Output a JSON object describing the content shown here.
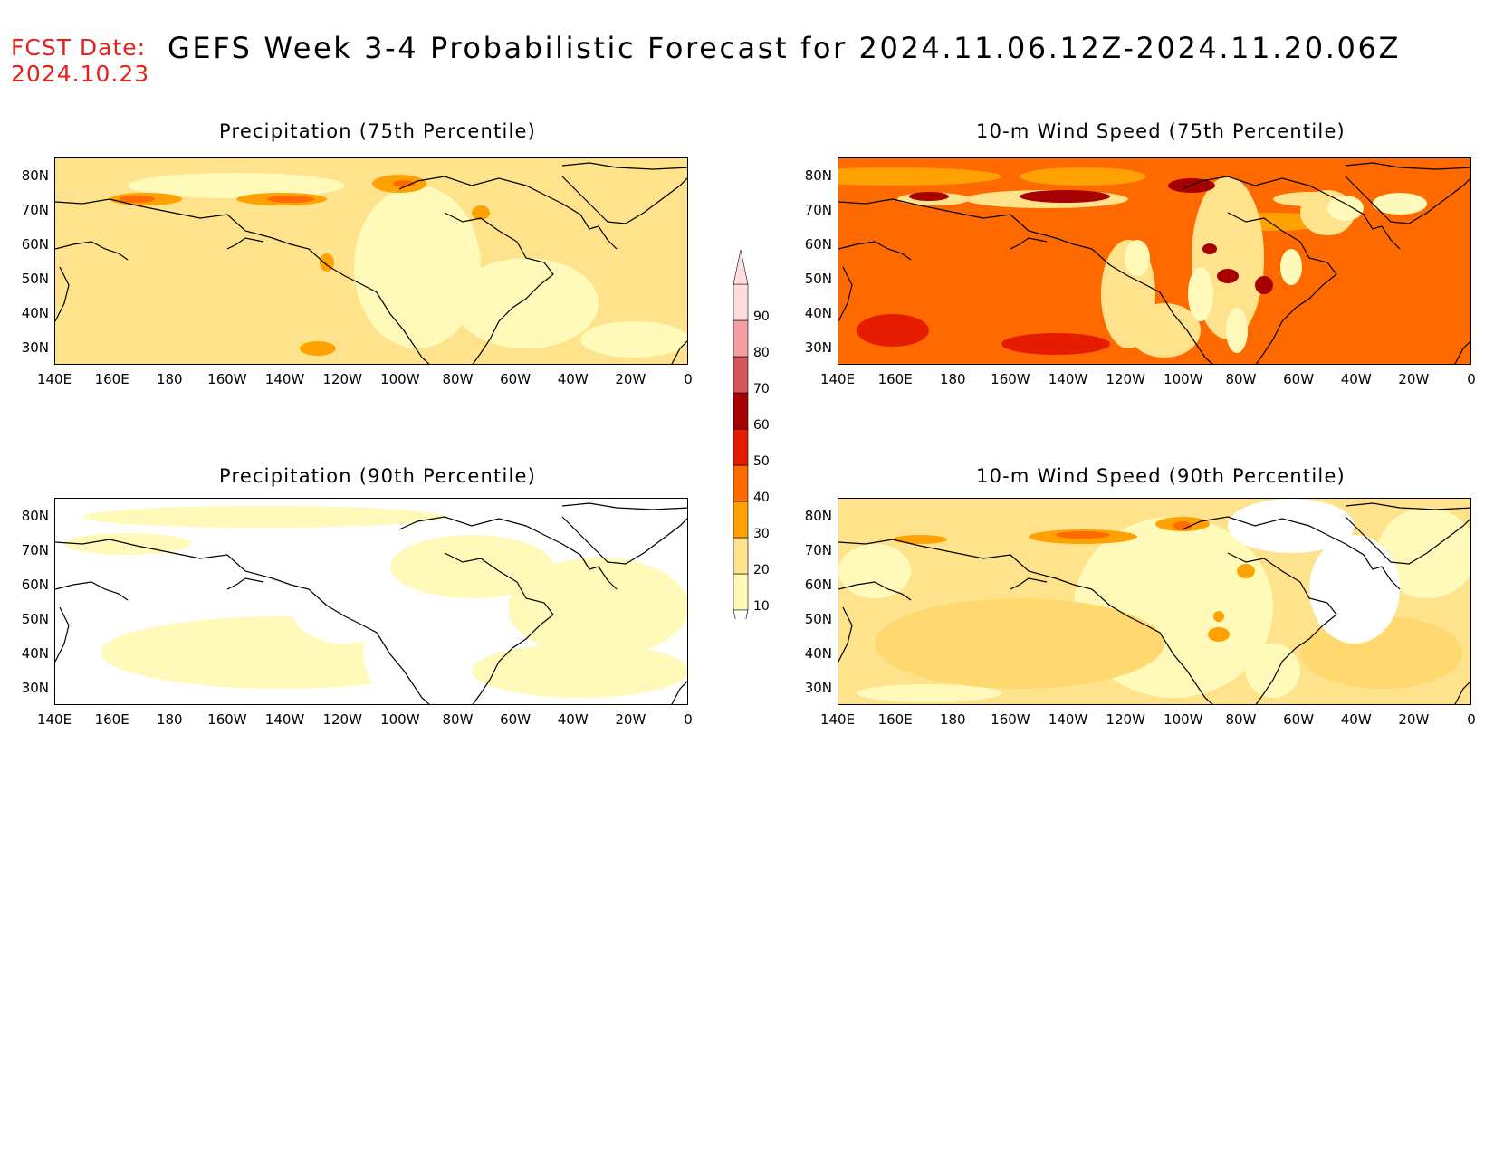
{
  "header": {
    "fcst_label": "FCST Date:",
    "fcst_date": "2024.10.23",
    "title": "GEFS Week 3-4 Probabilistic Forecast for 2024.11.06.12Z-2024.11.20.06Z"
  },
  "panels": [
    {
      "id": "precip75",
      "title": "Precipitation (75th Percentile)",
      "base": "#ffe28c",
      "style": "precip75"
    },
    {
      "id": "wind75",
      "title": "10-m Wind Speed (75th Percentile)",
      "base": "#ff6a00",
      "style": "wind75"
    },
    {
      "id": "precip90",
      "title": "Precipitation (90th Percentile)",
      "base": "#ffffff",
      "style": "precip90"
    },
    {
      "id": "wind90",
      "title": "10-m Wind Speed (90th Percentile)",
      "base": "#ffe28c",
      "style": "wind90"
    }
  ],
  "axes": {
    "lat_labels": [
      "80N",
      "70N",
      "60N",
      "50N",
      "40N",
      "30N"
    ],
    "lon_labels": [
      "140E",
      "160E",
      "180",
      "160W",
      "140W",
      "120W",
      "100W",
      "80W",
      "60W",
      "40W",
      "20W",
      "0"
    ]
  },
  "colorbar": {
    "levels": [
      "10",
      "20",
      "30",
      "40",
      "50",
      "60",
      "70",
      "80",
      "90"
    ],
    "colors": [
      "#fffaba",
      "#ffe28c",
      "#ffa100",
      "#ff6a00",
      "#e61c00",
      "#a60000",
      "#d4565a",
      "#f29ea2",
      "#ffdcdc"
    ]
  }
}
